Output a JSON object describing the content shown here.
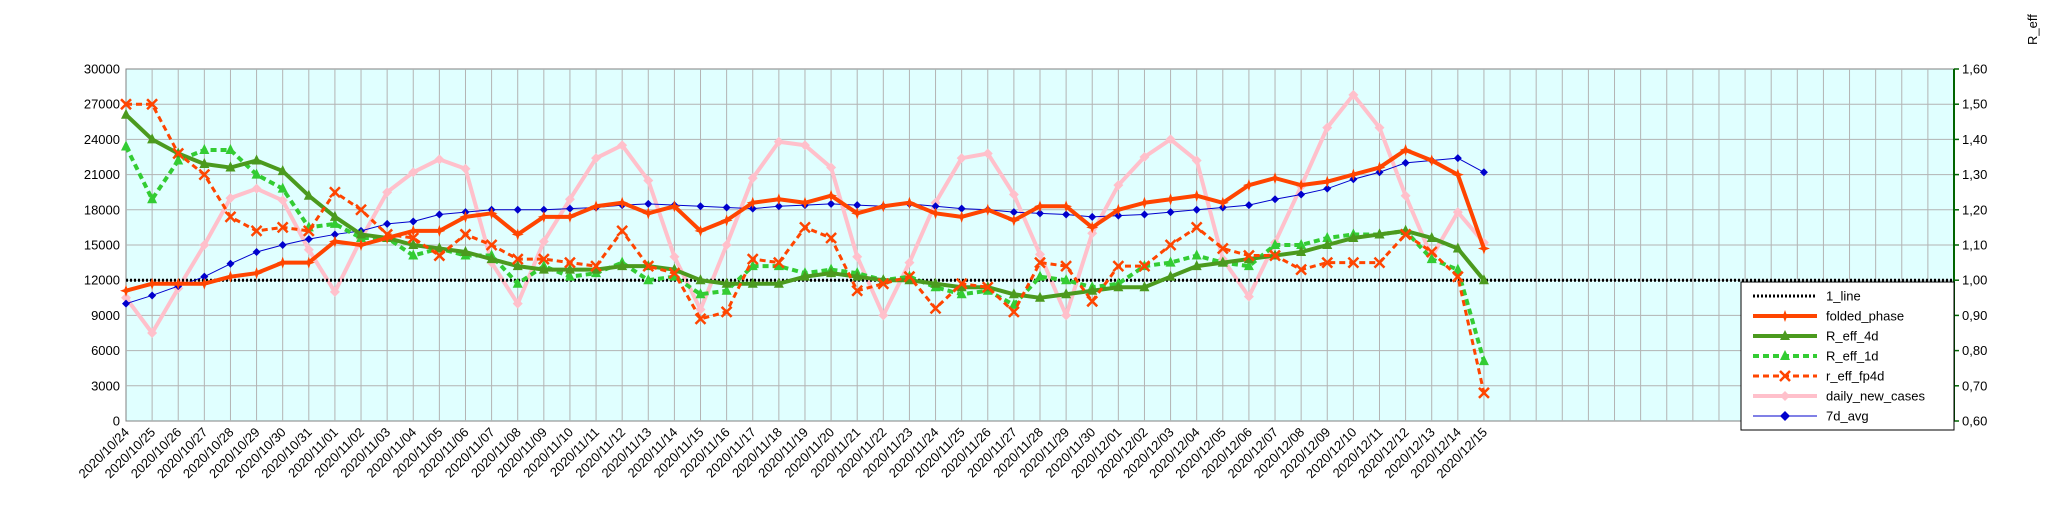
{
  "chart_data": {
    "type": "line",
    "y2_axis_label": "R_eff",
    "y_left": {
      "ylim": [
        0,
        30000
      ],
      "ticks": [
        "0",
        "3000",
        "6000",
        "9000",
        "12000",
        "15000",
        "18000",
        "21000",
        "24000",
        "27000",
        "30000"
      ]
    },
    "y_right": {
      "ylim": [
        0.6,
        1.6
      ],
      "ticks": [
        "0,60",
        "0,70",
        "0,80",
        "0,90",
        "1,00",
        "1,10",
        "1,20",
        "1,30",
        "1,40",
        "1,50",
        "1,60"
      ]
    },
    "x_range_days": 70,
    "categories": [
      "2020/10/24",
      "2020/10/25",
      "2020/10/26",
      "2020/10/27",
      "2020/10/28",
      "2020/10/29",
      "2020/10/30",
      "2020/10/31",
      "2020/11/01",
      "2020/11/02",
      "2020/11/03",
      "2020/11/04",
      "2020/11/05",
      "2020/11/06",
      "2020/11/07",
      "2020/11/08",
      "2020/11/09",
      "2020/11/10",
      "2020/11/11",
      "2020/11/12",
      "2020/11/13",
      "2020/11/14",
      "2020/11/15",
      "2020/11/16",
      "2020/11/17",
      "2020/11/18",
      "2020/11/19",
      "2020/11/20",
      "2020/11/21",
      "2020/11/22",
      "2020/11/23",
      "2020/11/24",
      "2020/11/25",
      "2020/11/26",
      "2020/11/27",
      "2020/11/28",
      "2020/11/29",
      "2020/11/30",
      "2020/12/01",
      "2020/12/02",
      "2020/12/03",
      "2020/12/04",
      "2020/12/05",
      "2020/12/06",
      "2020/12/07",
      "2020/12/08",
      "2020/12/09",
      "2020/12/10",
      "2020/12/11",
      "2020/12/12",
      "2020/12/13",
      "2020/12/14",
      "2020/12/15"
    ],
    "legend": {
      "position": "right"
    },
    "series": [
      {
        "name": "1_line",
        "axis": "right",
        "color": "#000000",
        "dash": "2,2",
        "width": 3,
        "marker": "none",
        "values": [
          1.0,
          1.0,
          1.0,
          1.0,
          1.0,
          1.0,
          1.0,
          1.0,
          1.0,
          1.0,
          1.0,
          1.0,
          1.0,
          1.0,
          1.0,
          1.0,
          1.0,
          1.0,
          1.0,
          1.0,
          1.0,
          1.0,
          1.0,
          1.0,
          1.0,
          1.0,
          1.0,
          1.0,
          1.0,
          1.0,
          1.0,
          1.0,
          1.0,
          1.0,
          1.0,
          1.0,
          1.0,
          1.0,
          1.0,
          1.0,
          1.0,
          1.0,
          1.0,
          1.0,
          1.0,
          1.0,
          1.0,
          1.0,
          1.0,
          1.0,
          1.0,
          1.0,
          1.0
        ]
      },
      {
        "name": "folded_phase",
        "axis": "right",
        "color": "#ff4500",
        "dash": "",
        "width": 4,
        "marker": "star",
        "values": [
          0.97,
          0.99,
          0.99,
          0.99,
          1.01,
          1.02,
          1.05,
          1.05,
          1.11,
          1.1,
          1.12,
          1.14,
          1.14,
          1.18,
          1.19,
          1.13,
          1.18,
          1.18,
          1.21,
          1.22,
          1.19,
          1.21,
          1.14,
          1.17,
          1.22,
          1.23,
          1.22,
          1.24,
          1.19,
          1.21,
          1.22,
          1.19,
          1.18,
          1.2,
          1.17,
          1.21,
          1.21,
          1.15,
          1.2,
          1.22,
          1.23,
          1.24,
          1.22,
          1.27,
          1.29,
          1.27,
          1.28,
          1.3,
          1.32,
          1.37,
          1.34,
          1.3,
          1.09
        ]
      },
      {
        "name": "R_eff_4d",
        "axis": "right",
        "color": "#4b9a1e",
        "dash": "",
        "width": 4,
        "marker": "triangle",
        "values": [
          1.47,
          1.4,
          1.36,
          1.33,
          1.32,
          1.34,
          1.31,
          1.24,
          1.18,
          1.13,
          1.12,
          1.1,
          1.09,
          1.08,
          1.06,
          1.04,
          1.03,
          1.03,
          1.03,
          1.04,
          1.04,
          1.03,
          1.0,
          0.99,
          0.99,
          0.99,
          1.01,
          1.02,
          1.01,
          1.0,
          1.0,
          0.99,
          0.98,
          0.98,
          0.96,
          0.95,
          0.96,
          0.97,
          0.98,
          0.98,
          1.01,
          1.04,
          1.05,
          1.06,
          1.07,
          1.08,
          1.1,
          1.12,
          1.13,
          1.14,
          1.12,
          1.09,
          1.0
        ]
      },
      {
        "name": "R_eff_1d",
        "axis": "right",
        "color": "#33cc33",
        "dash": "6,4",
        "width": 4,
        "marker": "triangle",
        "values": [
          1.38,
          1.23,
          1.34,
          1.37,
          1.37,
          1.3,
          1.26,
          1.15,
          1.16,
          1.12,
          1.12,
          1.07,
          1.09,
          1.07,
          1.07,
          0.99,
          1.04,
          1.01,
          1.02,
          1.05,
          1.0,
          1.01,
          0.96,
          0.97,
          1.04,
          1.04,
          1.02,
          1.03,
          1.02,
          1.0,
          1.01,
          0.98,
          0.96,
          0.97,
          0.93,
          1.01,
          1.0,
          0.98,
          0.99,
          1.04,
          1.05,
          1.07,
          1.05,
          1.04,
          1.1,
          1.1,
          1.12,
          1.13,
          1.13,
          1.14,
          1.06,
          1.03,
          0.77
        ]
      },
      {
        "name": "r_eff_fp4d",
        "axis": "right",
        "color": "#ff4500",
        "dash": "6,4",
        "width": 3,
        "marker": "x",
        "values": [
          1.5,
          1.5,
          1.36,
          1.3,
          1.18,
          1.14,
          1.15,
          1.14,
          1.25,
          1.2,
          1.13,
          1.12,
          1.07,
          1.13,
          1.1,
          1.06,
          1.06,
          1.05,
          1.04,
          1.14,
          1.04,
          1.02,
          0.89,
          0.91,
          1.06,
          1.05,
          1.15,
          1.12,
          0.97,
          0.99,
          1.01,
          0.92,
          0.99,
          0.98,
          0.91,
          1.05,
          1.04,
          0.94,
          1.04,
          1.04,
          1.1,
          1.15,
          1.09,
          1.07,
          1.07,
          1.03,
          1.05,
          1.05,
          1.05,
          1.13,
          1.08,
          1.01,
          0.68
        ]
      },
      {
        "name": "daily_new_cases",
        "axis": "left",
        "color": "#ffc0cb",
        "dash": "",
        "width": 4,
        "marker": "diamond",
        "values": [
          10500,
          7500,
          11300,
          15000,
          19000,
          19800,
          18800,
          14600,
          11000,
          15500,
          19500,
          21200,
          22300,
          21500,
          13500,
          10000,
          15300,
          18900,
          22400,
          23500,
          20500,
          14000,
          9500,
          15000,
          20700,
          23800,
          23500,
          21600,
          14000,
          9000,
          13500,
          18600,
          22400,
          22800,
          19300,
          14200,
          9000,
          16000,
          20100,
          22500,
          24000,
          22200,
          13800,
          10600,
          15200,
          20000,
          25000,
          27800,
          25000,
          19200,
          14000,
          17800,
          15200
        ]
      },
      {
        "name": "7d_avg",
        "axis": "left",
        "color": "#0000cd",
        "dash": "",
        "width": 1,
        "marker": "diamond",
        "values": [
          10000,
          10700,
          11500,
          12300,
          13400,
          14400,
          15000,
          15500,
          15900,
          16200,
          16800,
          17000,
          17600,
          17800,
          18000,
          18000,
          18000,
          18100,
          18200,
          18400,
          18500,
          18400,
          18300,
          18200,
          18100,
          18300,
          18400,
          18500,
          18400,
          18300,
          18500,
          18300,
          18100,
          18000,
          17800,
          17700,
          17600,
          17400,
          17500,
          17600,
          17800,
          18000,
          18200,
          18400,
          18900,
          19300,
          19800,
          20600,
          21200,
          22000,
          22200,
          22400,
          21200
        ]
      }
    ]
  }
}
